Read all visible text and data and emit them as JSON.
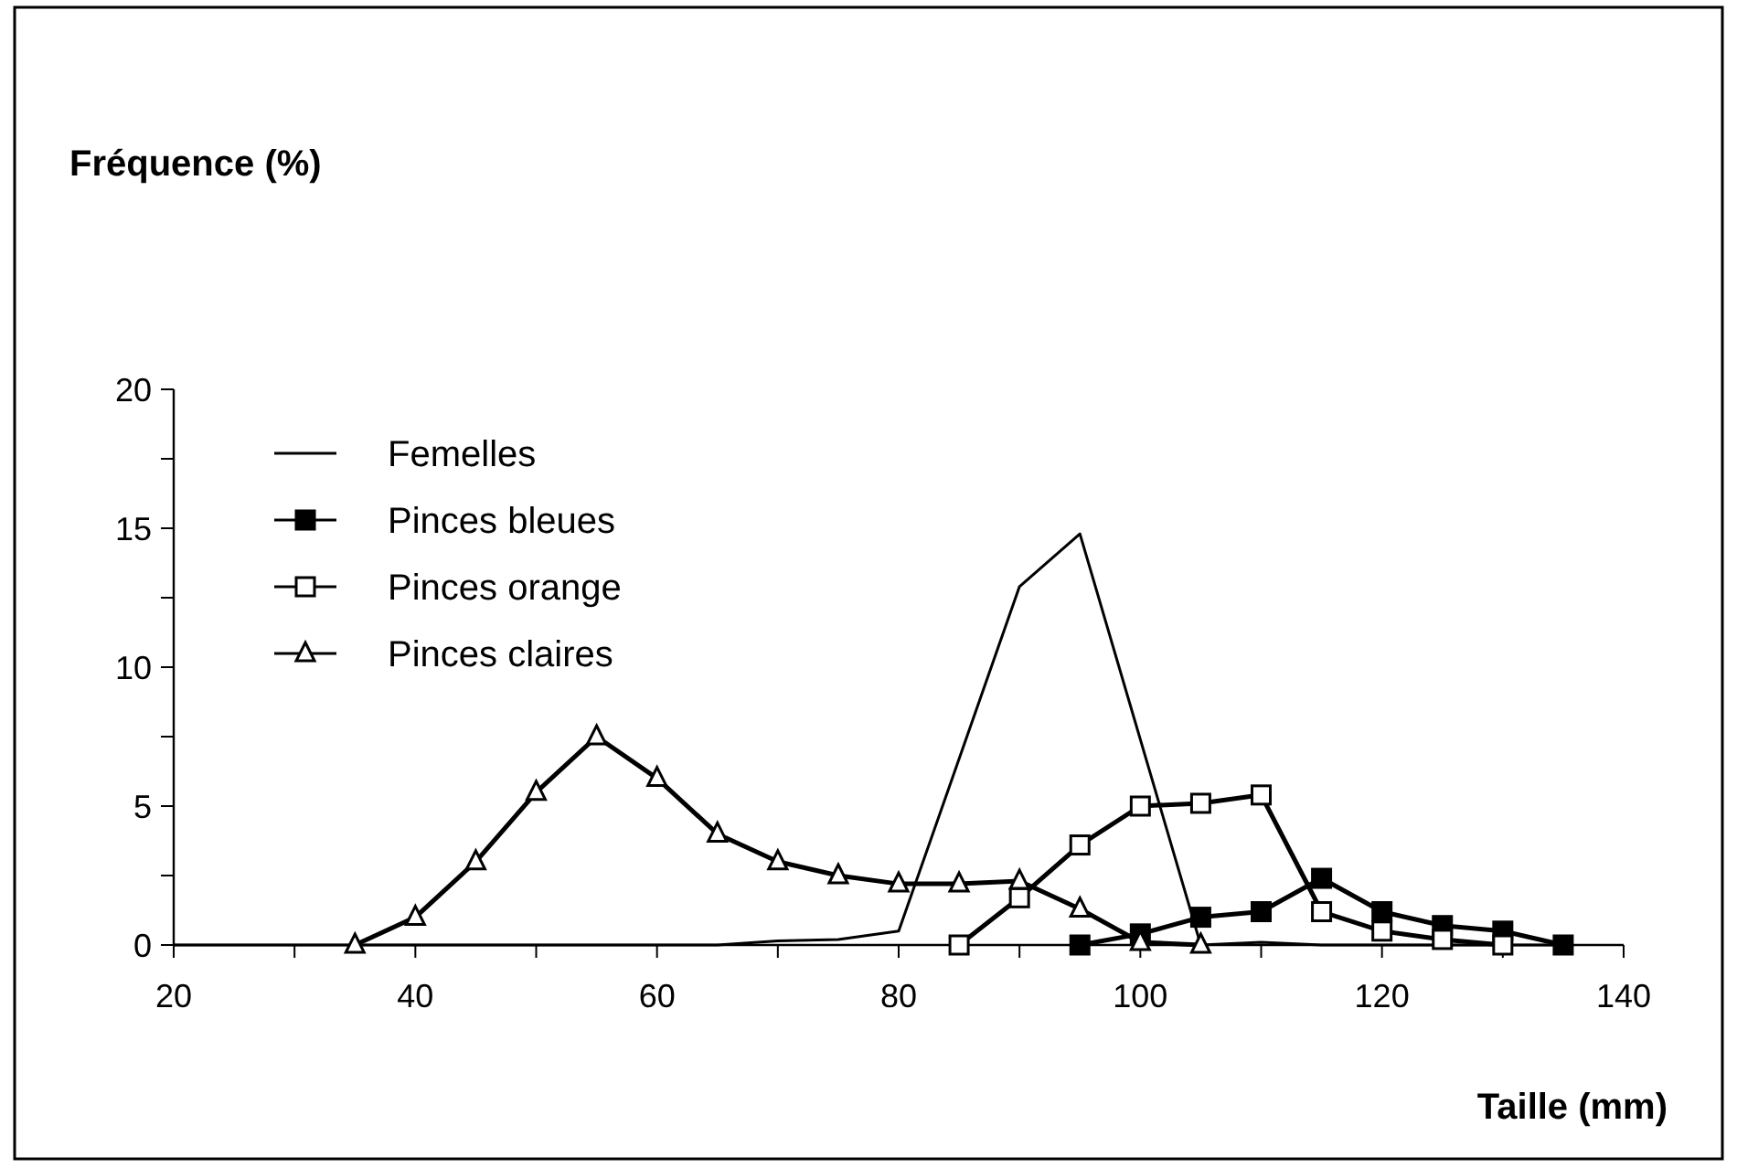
{
  "chart_data": {
    "type": "line",
    "annotations": [
      "Fréquence (%)"
    ],
    "xlabel": "Taille (mm)",
    "xlim": [
      20,
      140
    ],
    "ylim": [
      0,
      20
    ],
    "xticks": [
      20,
      {
        "value": 30,
        "label": null
      },
      40,
      {
        "value": 50,
        "label": null
      },
      60,
      {
        "value": 70,
        "label": null
      },
      80,
      {
        "value": 90,
        "label": null
      },
      100,
      {
        "value": 110,
        "label": null
      },
      120,
      {
        "value": 130,
        "label": null
      },
      140
    ],
    "yticks": [
      0,
      {
        "value": 2.5,
        "label": null
      },
      5,
      {
        "value": 7.5,
        "label": null
      },
      10,
      {
        "value": 12.5,
        "label": null
      },
      15,
      {
        "value": 17.5,
        "label": null
      },
      20
    ],
    "legend": "top left",
    "grid": false,
    "series": [
      {
        "name": "Femelles",
        "color": "#000000",
        "marker": "none",
        "x": [
          20,
          65,
          70,
          75,
          80,
          90,
          95,
          105,
          110,
          115,
          135
        ],
        "values": [
          0,
          0,
          0.15,
          0.2,
          0.5,
          12.9,
          14.8,
          0,
          0.1,
          0,
          0
        ]
      },
      {
        "name": "Pinces bleues",
        "color": "#000000",
        "marker": "square",
        "x": [
          95,
          100,
          105,
          110,
          115,
          120,
          125,
          130,
          135
        ],
        "values": [
          0,
          0.4,
          1,
          1.2,
          2.4,
          1.2,
          0.7,
          0.5,
          0
        ]
      },
      {
        "name": "Pinces orange",
        "color": "#000000",
        "marker": "square",
        "colors": [
          "#ffffff",
          "#ffffff",
          "#ffffff",
          "#ffffff",
          "#ffffff",
          "#ffffff",
          "#ffffff",
          "#ffffff",
          "#ffffff",
          "#ffffff"
        ],
        "x": [
          85,
          90,
          95,
          100,
          105,
          110,
          115,
          120,
          125,
          130
        ],
        "values": [
          0,
          1.7,
          3.6,
          5,
          5.1,
          5.4,
          1.2,
          0.5,
          0.2,
          0
        ]
      },
      {
        "name": "Pinces claires",
        "color": "#000000",
        "marker": "triangle",
        "colors": [
          "#ffffff",
          "#ffffff",
          "#ffffff",
          "#ffffff",
          "#ffffff",
          "#ffffff",
          "#ffffff",
          "#ffffff",
          "#ffffff",
          "#ffffff",
          "#ffffff",
          "#ffffff",
          "#ffffff",
          "#ffffff",
          "#ffffff"
        ],
        "x": [
          35,
          40,
          45,
          50,
          55,
          60,
          65,
          70,
          75,
          80,
          85,
          90,
          95,
          100,
          105
        ],
        "values": [
          0,
          1,
          3,
          5.5,
          7.5,
          6,
          4,
          3,
          2.5,
          2.2,
          2.2,
          2.3,
          1.3,
          0.1,
          0
        ]
      }
    ]
  }
}
